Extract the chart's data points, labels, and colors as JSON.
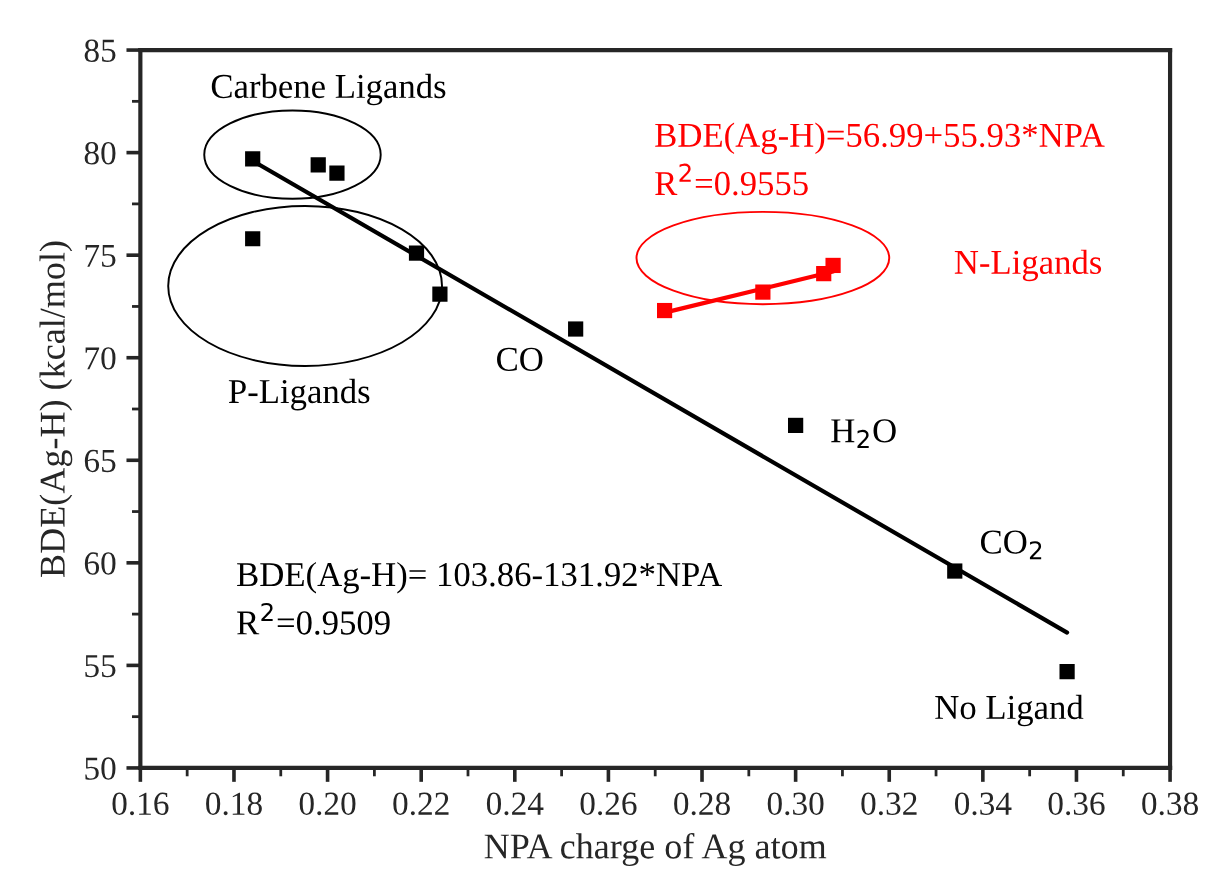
{
  "chart_data": {
    "type": "scatter",
    "xlabel": "NPA charge of Ag atom",
    "ylabel": "BDE(Ag-H) (kcal/mol)",
    "series": [
      {
        "color": "#000000",
        "x": [
          0.184,
          0.184,
          0.198,
          0.202,
          0.219,
          0.224,
          0.253,
          0.3,
          0.334,
          0.358
        ],
        "values": [
          79.7,
          75.8,
          79.4,
          79.0,
          75.1,
          73.1,
          71.4,
          66.7,
          59.6,
          54.7
        ]
      },
      {
        "type": "line",
        "marker": "none",
        "color": "#000000",
        "x": [
          0.184,
          0.358
        ],
        "values": [
          79.6,
          56.6
        ]
      },
      {
        "color": "#ff0000",
        "x": [
          0.272,
          0.293,
          0.306,
          0.308
        ],
        "values": [
          72.3,
          73.2,
          74.1,
          74.5
        ]
      },
      {
        "type": "line",
        "marker": "none",
        "color": "#ff0000",
        "x": [
          0.272,
          0.308
        ],
        "values": [
          72.2,
          74.2
        ]
      }
    ],
    "marker": "square",
    "xlim": [
      0.16,
      0.38
    ],
    "xticks": [
      {
        "value": 0.16,
        "label": "0.16"
      },
      {
        "value": 0.18,
        "label": "0.18"
      },
      {
        "value": 0.2,
        "label": "0.20"
      },
      {
        "value": 0.22,
        "label": "0.22"
      },
      {
        "value": 0.24,
        "label": "0.24"
      },
      {
        "value": 0.26,
        "label": "0.26"
      },
      {
        "value": 0.28,
        "label": "0.28"
      },
      {
        "value": 0.3,
        "label": "0.30"
      },
      {
        "value": 0.32,
        "label": "0.32"
      },
      {
        "value": 0.34,
        "label": "0.34"
      },
      {
        "value": 0.36,
        "label": "0.36"
      },
      {
        "value": 0.38,
        "label": "0.38"
      }
    ],
    "ylim": [
      50,
      85
    ],
    "yticks": [
      50,
      55,
      60,
      65,
      70,
      75,
      80,
      85
    ],
    "grid": false,
    "legend": false,
    "annotations": [
      "Carbene Ligands",
      "P-Ligands",
      "CO",
      "H$_{2}$O",
      "CO$_{2}$",
      "No Ligand",
      "N-Ligands",
      "BDE(Ag-H)=56.99+55.93*NPA",
      "R$^{2}$=0.9555",
      "BDE(Ag-H)= 103.86-131.92*NPA",
      "R$^{2}$=0.9509"
    ]
  }
}
